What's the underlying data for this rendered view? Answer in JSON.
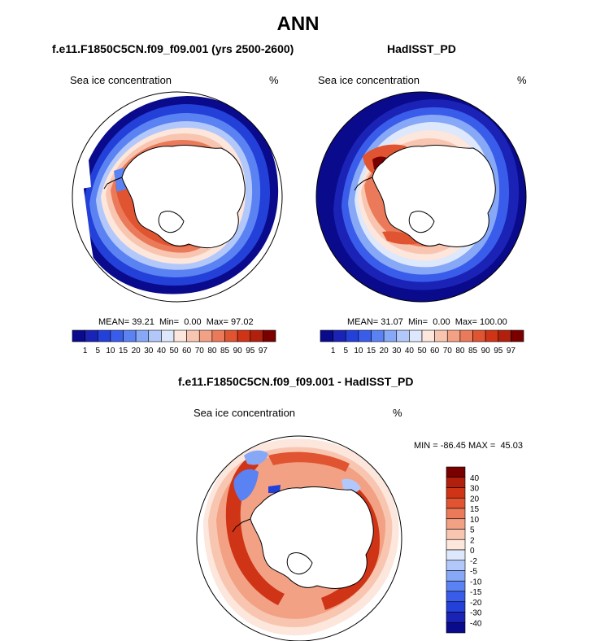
{
  "title": "ANN",
  "panels": [
    {
      "subtitle": "f.e11.F1850C5CN.f09_f09.001 (yrs 2500-2600)",
      "left_label": "Sea ice concentration",
      "unit_label": "%",
      "stats": {
        "mean_label": "MEAN=",
        "mean": "39.21",
        "min_label": "Min=",
        "min": "0.00",
        "max_label": "Max=",
        "max": "97.02"
      }
    },
    {
      "subtitle": "HadISST_PD",
      "left_label": "Sea ice concentration",
      "unit_label": "%",
      "stats": {
        "mean_label": "MEAN=",
        "mean": "31.07",
        "min_label": "Min=",
        "min": "0.00",
        "max_label": "Max=",
        "max": "100.00"
      }
    },
    {
      "subtitle": "f.e11.F1850C5CN.f09_f09.001 - HadISST_PD",
      "left_label": "Sea ice concentration",
      "unit_label": "%",
      "stats": {
        "min_label": "MIN =",
        "min": "-86.45",
        "max_label": "MAX =",
        "max": "45.03"
      }
    }
  ],
  "chart_data": [
    {
      "type": "heatmap",
      "projection": "south polar stereographic",
      "region": "Antarctica",
      "variable": "Sea ice concentration",
      "units": "%",
      "case": "f.e11.F1850C5CN.f09_f09.001 (yrs 2500-2600)",
      "mean": 39.21,
      "min": 0.0,
      "max": 97.02,
      "colorbar": {
        "orientation": "horizontal",
        "levels": [
          1,
          5,
          10,
          15,
          20,
          30,
          40,
          50,
          60,
          70,
          80,
          85,
          90,
          95,
          97
        ],
        "colors": [
          "#0a0a8c",
          "#1a23b5",
          "#2340d8",
          "#3a5cea",
          "#5a82f2",
          "#86a8f6",
          "#b2c8fa",
          "#dde8fc",
          "#fde6dc",
          "#f8c6b0",
          "#f2a184",
          "#eb7a5a",
          "#e05432",
          "#cf3416",
          "#b0200c",
          "#7a0000"
        ]
      }
    },
    {
      "type": "heatmap",
      "projection": "south polar stereographic",
      "region": "Antarctica",
      "variable": "Sea ice concentration",
      "units": "%",
      "case": "HadISST_PD",
      "mean": 31.07,
      "min": 0.0,
      "max": 100.0,
      "colorbar": {
        "orientation": "horizontal",
        "levels": [
          1,
          5,
          10,
          15,
          20,
          30,
          40,
          50,
          60,
          70,
          80,
          85,
          90,
          95,
          97
        ],
        "colors": [
          "#0a0a8c",
          "#1a23b5",
          "#2340d8",
          "#3a5cea",
          "#5a82f2",
          "#86a8f6",
          "#b2c8fa",
          "#dde8fc",
          "#fde6dc",
          "#f8c6b0",
          "#f2a184",
          "#eb7a5a",
          "#e05432",
          "#cf3416",
          "#b0200c",
          "#7a0000"
        ]
      }
    },
    {
      "type": "heatmap",
      "projection": "south polar stereographic",
      "region": "Antarctica",
      "variable": "Sea ice concentration",
      "units": "%",
      "case": "f.e11.F1850C5CN.f09_f09.001 - HadISST_PD",
      "min": -86.45,
      "max": 45.03,
      "colorbar": {
        "orientation": "vertical",
        "levels": [
          40,
          30,
          20,
          15,
          10,
          5,
          2,
          0,
          -2,
          -5,
          -10,
          -15,
          -20,
          -30,
          -40
        ],
        "colors": [
          "#7a0000",
          "#b0200c",
          "#cf3416",
          "#e05432",
          "#eb7a5a",
          "#f2a184",
          "#f8c6b0",
          "#fde6dc",
          "#dde8fc",
          "#b2c8fa",
          "#86a8f6",
          "#5a82f2",
          "#3a5cea",
          "#2340d8",
          "#1a23b5",
          "#0a0a8c"
        ]
      }
    }
  ]
}
